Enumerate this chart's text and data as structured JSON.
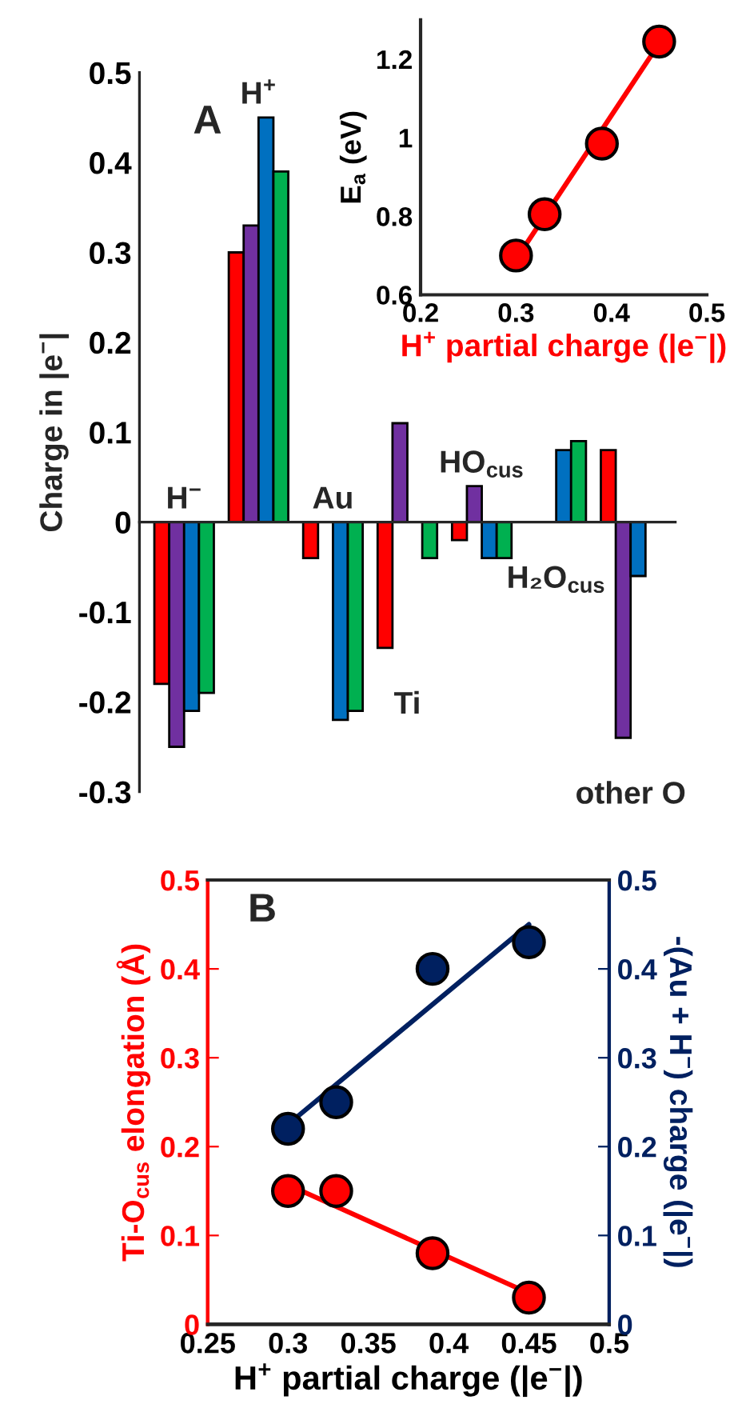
{
  "chart_data": [
    {
      "type": "bar",
      "ylabel": "Charge in |e$^{−}$|",
      "categories": [
        "H$^{−}$",
        "H$^{+}$",
        "Au",
        "Ti",
        "HO$_{cus}$",
        "H₂O$_{cus}$",
        "other O"
      ],
      "series": [
        {
          "color": "#ff0000",
          "values": [
            -0.18,
            0.3,
            -0.04,
            -0.14,
            -0.02,
            null,
            0.08
          ]
        },
        {
          "color": "#7030a0",
          "values": [
            -0.25,
            0.33,
            null,
            0.11,
            0.04,
            null,
            -0.24
          ]
        },
        {
          "color": "#0070c0",
          "values": [
            -0.21,
            0.45,
            -0.22,
            null,
            -0.04,
            0.08,
            -0.06
          ]
        },
        {
          "color": "#00b050",
          "values": [
            -0.19,
            0.39,
            -0.21,
            -0.04,
            -0.04,
            0.09,
            null
          ]
        }
      ],
      "ylim": [
        -0.3,
        0.5
      ],
      "yticks": [
        -0.3,
        -0.2,
        -0.1,
        0,
        0.1,
        0.2,
        0.3,
        0.4,
        0.5
      ],
      "annotations": [
        "A"
      ],
      "grid": false,
      "legend": false
    },
    {
      "type": "scatter",
      "xlabel": "H$^{+}$ partial charge (|e$^{−}$|)",
      "ylabel": "E$_{a}$ (eV)",
      "series": [
        {
          "type": "line",
          "marker": "none",
          "color": "#ff0000",
          "x": [
            0.3,
            0.45
          ],
          "values": [
            0.69,
            1.24
          ]
        },
        {
          "type": "scatter",
          "color": "#ff0000",
          "x": [
            0.3,
            0.33,
            0.39,
            0.45
          ],
          "values": [
            0.7,
            0.805,
            0.985,
            1.245
          ]
        }
      ],
      "xlim": [
        0.2,
        0.5
      ],
      "xticks": [
        0.2,
        0.3,
        0.4,
        0.5
      ],
      "ylim": [
        0.6,
        1.3
      ],
      "yticks": [
        0.6,
        0.8,
        1,
        1.2
      ],
      "marker": "circle",
      "grid": false,
      "legend": false
    },
    {
      "type": "scatter",
      "xlabel": "H$^{+}$ partial charge (|e$^{−}$|)",
      "ylabel": "Ti-O$_{cus}$ elongation (Å)",
      "y2label": "-(Au + H$^{−}$) charge (|e$^{−}$|)",
      "series": [
        {
          "type": "line",
          "marker": "none",
          "color": "#ff0000",
          "x": [
            0.3,
            0.45
          ],
          "values": [
            0.157,
            0.035
          ]
        },
        {
          "type": "scatter",
          "color": "#ff0000",
          "x": [
            0.3,
            0.33,
            0.39,
            0.45
          ],
          "values": [
            0.15,
            0.15,
            0.08,
            0.03
          ]
        },
        {
          "type": "line",
          "marker": "none",
          "axis": "y2",
          "color": "#002060",
          "x": [
            0.3,
            0.45
          ],
          "values": [
            0.225,
            0.45
          ]
        },
        {
          "type": "scatter",
          "axis": "y2",
          "color": "#002060",
          "x": [
            0.3,
            0.33,
            0.39,
            0.45
          ],
          "values": [
            0.22,
            0.25,
            0.4,
            0.43
          ]
        }
      ],
      "xlim": [
        0.25,
        0.5
      ],
      "xticks": [
        0.25,
        0.3,
        0.35,
        0.4,
        0.45,
        0.5
      ],
      "ylim": [
        0,
        0.5
      ],
      "yticks": [
        0,
        0.1,
        0.2,
        0.3,
        0.4,
        0.5
      ],
      "y2lim": [
        0,
        0.5
      ],
      "y2ticks": [
        0,
        0.1,
        0.2,
        0.3,
        0.4,
        0.5
      ],
      "annotations": [
        "B"
      ],
      "marker": "circle",
      "grid": false,
      "legend": false
    }
  ]
}
